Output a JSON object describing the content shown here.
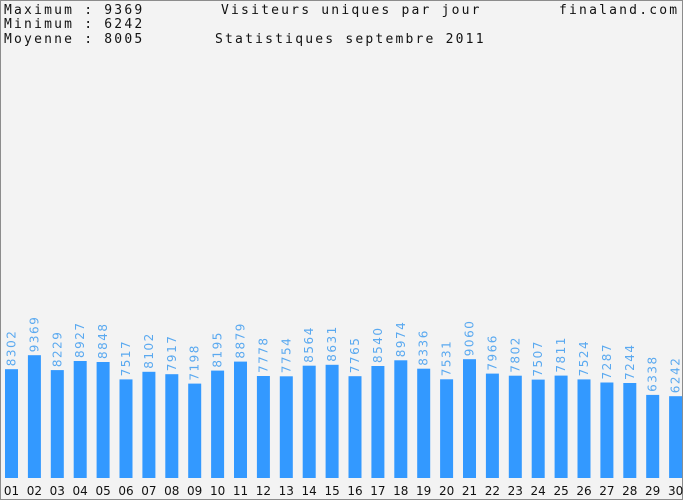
{
  "header": {
    "max_label": "Maximum : 9369",
    "min_label": "Minimum : 6242",
    "avg_label": "Moyenne : 8005",
    "title": "Visiteurs uniques par jour",
    "subtitle": "Statistiques septembre 2011",
    "site": "finaland.com"
  },
  "colors": {
    "bar": "#3399ff",
    "bar_label": "#5aa9f0",
    "text": "#111111",
    "background": "#f3f3f3"
  },
  "chart_data": {
    "type": "bar",
    "title": "Visiteurs uniques par jour",
    "subtitle": "Statistiques septembre 2011",
    "categories": [
      "01",
      "02",
      "03",
      "04",
      "05",
      "06",
      "07",
      "08",
      "09",
      "10",
      "11",
      "12",
      "13",
      "14",
      "15",
      "16",
      "17",
      "18",
      "19",
      "20",
      "21",
      "22",
      "23",
      "24",
      "25",
      "26",
      "27",
      "28",
      "29",
      "30"
    ],
    "values": [
      8302,
      9369,
      8229,
      8927,
      8848,
      7517,
      8102,
      7917,
      7198,
      8195,
      8879,
      7778,
      7754,
      8564,
      8631,
      7765,
      8540,
      8974,
      8336,
      7531,
      9060,
      7966,
      7802,
      7507,
      7811,
      7524,
      7287,
      7244,
      6338,
      6242
    ],
    "ylim": [
      0,
      27000
    ],
    "grid": false,
    "legend": "none"
  }
}
